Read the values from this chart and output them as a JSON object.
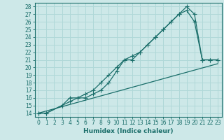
{
  "xlabel": "Humidex (Indice chaleur)",
  "bg_color": "#cde8e8",
  "grid_color": "#b0d8d8",
  "line_color": "#1a6e6a",
  "xlim": [
    -0.5,
    23.5
  ],
  "ylim": [
    13.5,
    28.5
  ],
  "xticks": [
    0,
    1,
    2,
    3,
    4,
    5,
    6,
    7,
    8,
    9,
    10,
    11,
    12,
    13,
    14,
    15,
    16,
    17,
    18,
    19,
    20,
    21,
    22,
    23
  ],
  "yticks": [
    14,
    15,
    16,
    17,
    18,
    19,
    20,
    21,
    22,
    23,
    24,
    25,
    26,
    27,
    28
  ],
  "line1_x": [
    0,
    1,
    3,
    4,
    5,
    6,
    7,
    8,
    9,
    10,
    11,
    12,
    13,
    14,
    15,
    16,
    17,
    18,
    19,
    20,
    21,
    22,
    23
  ],
  "line1_y": [
    14,
    14,
    15,
    16,
    16,
    16.5,
    17,
    18,
    19,
    20,
    21,
    21.5,
    22,
    23,
    24,
    25,
    26,
    27,
    28,
    27,
    21,
    21,
    21
  ],
  "line2_x": [
    0,
    1,
    3,
    4,
    5,
    6,
    7,
    8,
    9,
    10,
    11,
    12,
    13,
    14,
    15,
    16,
    17,
    18,
    19,
    20,
    21,
    22,
    23
  ],
  "line2_y": [
    14,
    14,
    15,
    15.5,
    16,
    16,
    16.5,
    17,
    18,
    19.5,
    21,
    21,
    22,
    23,
    24,
    25,
    26,
    27,
    27.5,
    26,
    21,
    21,
    21
  ],
  "line3_x": [
    0,
    23
  ],
  "line3_y": [
    14,
    20.5
  ],
  "marker_size": 2.5,
  "tick_fontsize": 5.5,
  "xlabel_fontsize": 6.5
}
